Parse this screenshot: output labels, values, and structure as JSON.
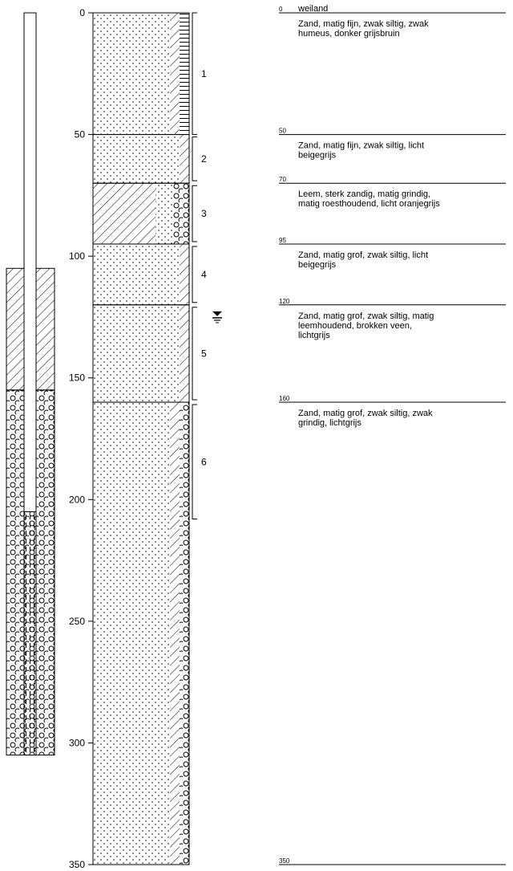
{
  "surface_label": "weiland",
  "depth_axis": {
    "min": 0,
    "max": 350,
    "ticks": [
      0,
      50,
      100,
      150,
      200,
      250,
      300,
      350
    ]
  },
  "layers": [
    {
      "top": 0,
      "bottom": 50,
      "depth_label": "0",
      "lith": "sand",
      "adds": [
        "silt",
        "humus"
      ],
      "description": [
        "Zand, matig fijn, zwak siltig, zwak",
        "humeus, donker grijsbruin"
      ]
    },
    {
      "top": 50,
      "bottom": 70,
      "depth_label": "50",
      "lith": "sand",
      "adds": [
        "silt"
      ],
      "description": [
        "Zand, matig fijn, zwak siltig, licht",
        "beigegrijs"
      ]
    },
    {
      "top": 70,
      "bottom": 95,
      "depth_label": "70",
      "lith": "loam",
      "adds": [
        "sand",
        "gravel"
      ],
      "description": [
        "Leem, sterk zandig, matig grindig,",
        "matig roesthoudend, licht oranjegrijs"
      ]
    },
    {
      "top": 95,
      "bottom": 120,
      "depth_label": "95",
      "lith": "sand",
      "adds": [
        "silt"
      ],
      "description": [
        "Zand, matig grof, zwak siltig, licht",
        "beigegrijs"
      ]
    },
    {
      "top": 120,
      "bottom": 160,
      "depth_label": "120",
      "lith": "sand",
      "adds": [
        "silt"
      ],
      "description": [
        "Zand, matig grof, zwak siltig, matig",
        "leemhoudend, brokken veen,",
        "lichtgrijs"
      ]
    },
    {
      "top": 160,
      "bottom": 350,
      "depth_label": "160",
      "lith": "sand",
      "adds": [
        "silt",
        "gravel"
      ],
      "description": [
        "Zand, matig grof, zwak siltig, zwak",
        "grindig, lichtgrijs"
      ]
    }
  ],
  "end_depth_label": "350",
  "samples": [
    {
      "label": "1",
      "top": 0,
      "bottom": 50
    },
    {
      "label": "2",
      "top": 51,
      "bottom": 69
    },
    {
      "label": "3",
      "top": 71,
      "bottom": 94
    },
    {
      "label": "4",
      "top": 96,
      "bottom": 119
    },
    {
      "label": "5",
      "top": 121,
      "bottom": 159
    },
    {
      "label": "6",
      "top": 161,
      "bottom": 208
    }
  ],
  "groundwater_depth": 125,
  "well": {
    "pipe_bottom": 205,
    "bentonite_top": 105,
    "bentonite_bottom": 155,
    "gravel_top": 155,
    "gravel_bottom": 305,
    "filter_top": 205,
    "filter_bottom": 305
  }
}
